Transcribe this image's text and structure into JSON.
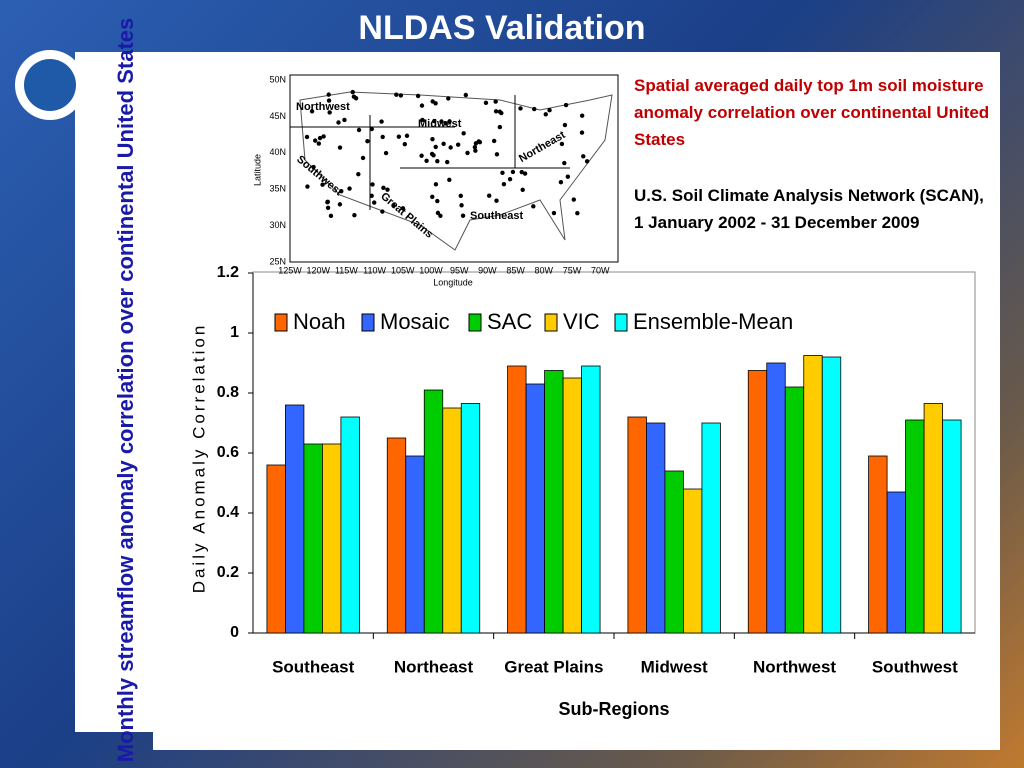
{
  "header": {
    "title": "NLDAS Validation"
  },
  "side_text": "Monthly streamflow anomaly correlation over continental United States",
  "notes": {
    "red": "Spatial averaged daily top 1m soil moisture anomaly correlation over continental United States",
    "black": "U.S. Soil Climate Analysis Network (SCAN), 1 January 2002 - 31 December 2009"
  },
  "map": {
    "lat_labels": [
      "50N",
      "45N",
      "40N",
      "35N",
      "30N",
      "25N"
    ],
    "lon_labels": [
      "125W",
      "120W",
      "115W",
      "110W",
      "105W",
      "100W",
      "95W",
      "90W",
      "85W",
      "80W",
      "75W",
      "70W"
    ],
    "ylabel": "Latitude",
    "xlabel": "Longitude",
    "regions": [
      "Northwest",
      "Midwest",
      "Northeast",
      "Southwest",
      "Great Plains",
      "Southeast"
    ]
  },
  "chart_data": {
    "type": "bar",
    "xlabel": "Sub-Regions",
    "ylabel": "Daily Anomaly Correlation",
    "categories": [
      "Southeast",
      "Northeast",
      "Great Plains",
      "Midwest",
      "Northwest",
      "Southwest"
    ],
    "series": [
      {
        "name": "Noah",
        "color": "#ff6600",
        "values": [
          0.56,
          0.65,
          0.89,
          0.72,
          0.875,
          0.59
        ]
      },
      {
        "name": "Mosaic",
        "color": "#3366ff",
        "values": [
          0.76,
          0.59,
          0.83,
          0.7,
          0.9,
          0.47
        ]
      },
      {
        "name": "SAC",
        "color": "#00cc00",
        "values": [
          0.63,
          0.81,
          0.875,
          0.54,
          0.82,
          0.71
        ]
      },
      {
        "name": "VIC",
        "color": "#ffcc00",
        "values": [
          0.63,
          0.75,
          0.85,
          0.48,
          0.925,
          0.765
        ]
      },
      {
        "name": "Ensemble-Mean",
        "color": "#00ffff",
        "values": [
          0.72,
          0.765,
          0.89,
          0.7,
          0.92,
          0.71
        ]
      }
    ],
    "ylim": [
      0,
      1.2
    ],
    "yticks": [
      0,
      0.2,
      0.4,
      0.6,
      0.8,
      1,
      1.2
    ],
    "legend": "top"
  }
}
